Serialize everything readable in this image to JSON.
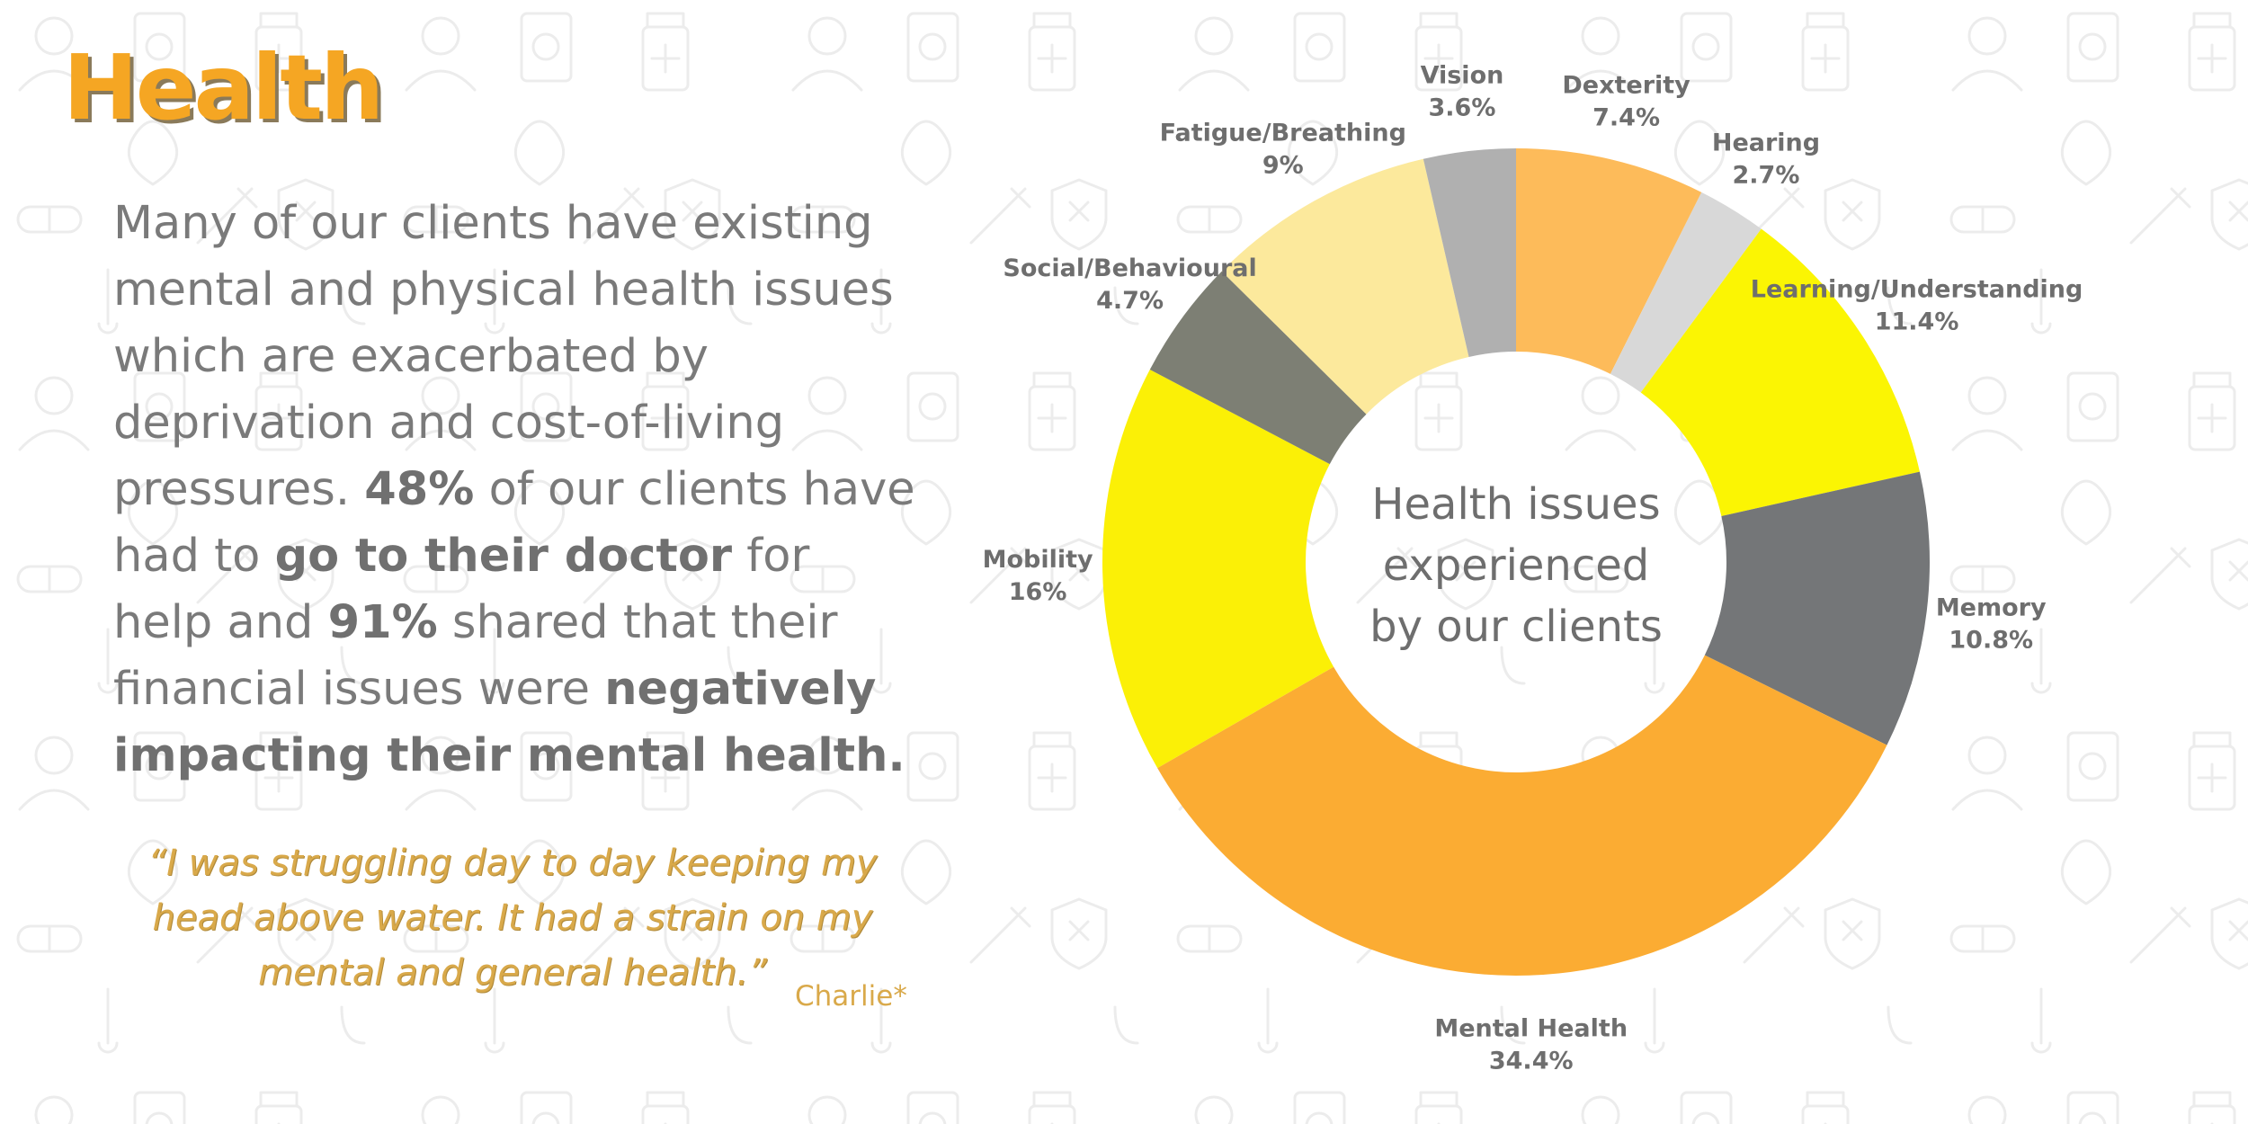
{
  "page": {
    "title": "Health",
    "body": {
      "p1": "Many of our clients have existing mental and physical health issues which are exacerbated by deprivation and cost-of-living pressures. ",
      "b1": "48%",
      "p2": " of our clients have had to ",
      "b2": "go to their doctor",
      "p3": " for help and ",
      "b3": "91%",
      "p4": " shared that their financial issues were ",
      "b4": "negatively impacting their mental health."
    },
    "quote": "“I was struggling day to day keeping my head above water. It had a strain on my mental and general health.”",
    "quote_author": "Charlie*"
  },
  "colors": {
    "accent": "#f5a623",
    "text_grey": "#7a7a7a",
    "quote_gold": "#d9a94a"
  },
  "chart_data": {
    "type": "pie",
    "variant": "donut",
    "title": "Health issues experienced by our clients",
    "title_lines": [
      "Health issues",
      "experienced",
      "by our clients"
    ],
    "start_angle_deg": 0,
    "direction": "clockwise",
    "slices": [
      {
        "name": "Dexterity",
        "value": 7.4,
        "label": "7.4%",
        "color": "#fdbb5a"
      },
      {
        "name": "Hearing",
        "value": 2.7,
        "label": "2.7%",
        "color": "#d8d8d8"
      },
      {
        "name": "Learning/Understanding",
        "value": 11.4,
        "label": "11.4%",
        "color": "#fbf503"
      },
      {
        "name": "Memory",
        "value": 10.8,
        "label": "10.8%",
        "color": "#747678"
      },
      {
        "name": "Mental Health",
        "value": 34.4,
        "label": "34.4%",
        "color": "#fbac33"
      },
      {
        "name": "Mobility",
        "value": 16,
        "label": "16%",
        "color": "#fbf006"
      },
      {
        "name": "Social/Behavioural",
        "value": 4.7,
        "label": "4.7%",
        "color": "#7d7f74"
      },
      {
        "name": "Fatigue/Breathing",
        "value": 9,
        "label": "9%",
        "color": "#fce99c"
      },
      {
        "name": "Vision",
        "value": 3.6,
        "label": "3.6%",
        "color": "#b0b0b0"
      }
    ]
  }
}
